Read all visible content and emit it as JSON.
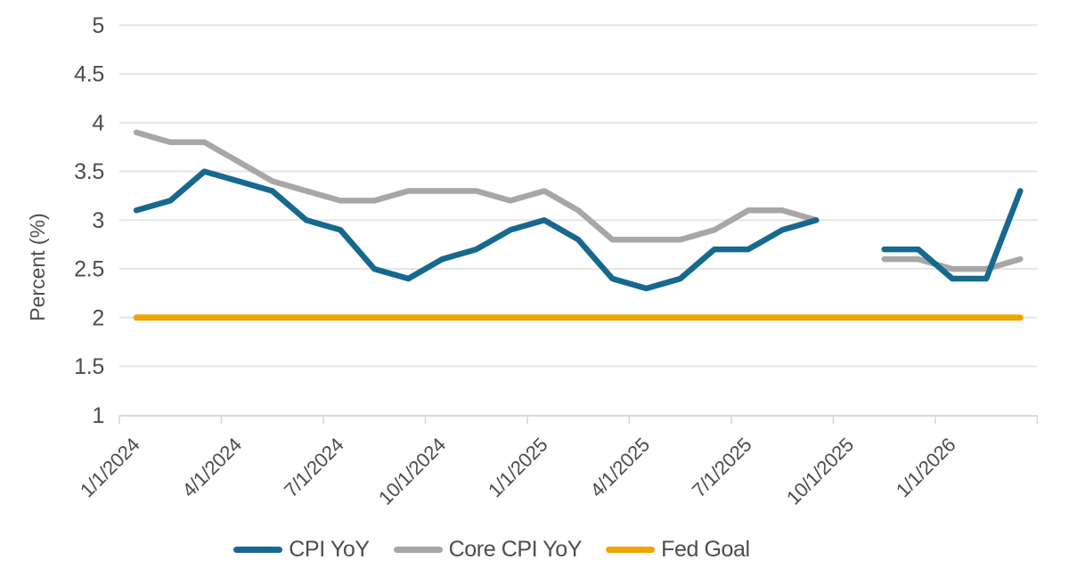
{
  "chart_data": {
    "type": "line",
    "title": "",
    "ylabel": "Percent (%)",
    "xlabel": "",
    "ylim": [
      1,
      5
    ],
    "y_tick_labels": [
      "5",
      "4.5",
      "4",
      "3.5",
      "3",
      "2.5",
      "2",
      "1.5",
      "1"
    ],
    "x_tick_labels": [
      "1/1/2024",
      "4/1/2024",
      "7/1/2024",
      "10/1/2024",
      "1/1/2025",
      "4/1/2025",
      "7/1/2025",
      "10/1/2025",
      "1/1/2026"
    ],
    "x_monthly_start": "1/2024",
    "x_monthly_end": "3/2026",
    "gap_month": "10/2025",
    "grid": "horizontal",
    "legend_position": "bottom",
    "series": [
      {
        "name": "CPI YoY",
        "color": "#16698E",
        "values": [
          3.1,
          3.2,
          3.5,
          3.4,
          3.3,
          3.0,
          2.9,
          2.5,
          2.4,
          2.6,
          2.7,
          2.9,
          3.0,
          2.8,
          2.4,
          2.3,
          2.4,
          2.7,
          2.7,
          2.9,
          3.0,
          null,
          2.7,
          2.7,
          2.4,
          2.4,
          3.3
        ]
      },
      {
        "name": "Core CPI YoY",
        "color": "#A7A7A7",
        "values": [
          3.9,
          3.8,
          3.8,
          3.6,
          3.4,
          3.3,
          3.2,
          3.2,
          3.3,
          3.3,
          3.3,
          3.2,
          3.3,
          3.1,
          2.8,
          2.8,
          2.8,
          2.9,
          3.1,
          3.1,
          3.0,
          null,
          2.6,
          2.6,
          2.5,
          2.5,
          2.6
        ]
      },
      {
        "name": "Fed Goal",
        "color": "#F0A402",
        "values": [
          2,
          2,
          2,
          2,
          2,
          2,
          2,
          2,
          2,
          2,
          2,
          2,
          2,
          2,
          2,
          2,
          2,
          2,
          2,
          2,
          2,
          2,
          2,
          2,
          2,
          2,
          2
        ]
      }
    ]
  },
  "style_colors": {
    "gridline": "#E5E5E5",
    "axis_line": "#D9D9D9",
    "tick_text": "#4D4D4D"
  }
}
